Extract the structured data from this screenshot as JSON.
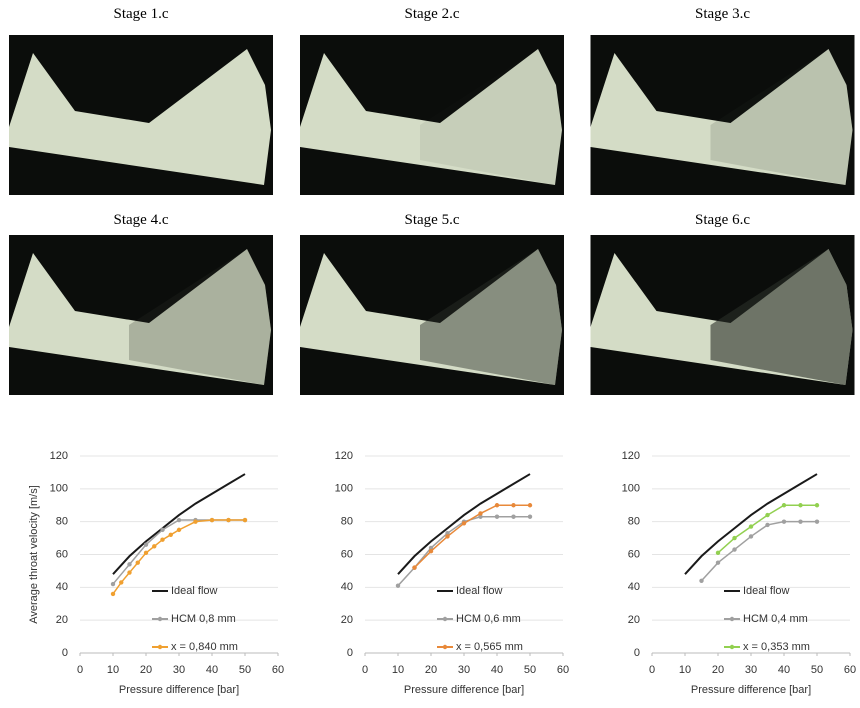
{
  "photos": [
    {
      "label": "Stage 1.c"
    },
    {
      "label": "Stage 2.c"
    },
    {
      "label": "Stage 3.c"
    },
    {
      "label": "Stage 4.c"
    },
    {
      "label": "Stage 5.c"
    },
    {
      "label": "Stage 6.c"
    }
  ],
  "chart_data": [
    {
      "type": "line",
      "ylabel": "Average throat velocity [m/s]",
      "xlabel": "Pressure difference [bar]",
      "xlim": [
        0,
        60
      ],
      "xticks": [
        0,
        10,
        20,
        30,
        40,
        50,
        60
      ],
      "ylim": [
        0,
        120
      ],
      "yticks": [
        0,
        20,
        40,
        60,
        80,
        100,
        120
      ],
      "grid": true,
      "legend": "lower right",
      "series": [
        {
          "name": "Ideal flow",
          "color": "#1a1a1a",
          "x": [
            10,
            15,
            20,
            25,
            30,
            35,
            40,
            45,
            50
          ],
          "values": [
            48,
            59,
            68,
            76,
            84,
            91,
            97,
            103,
            109
          ]
        },
        {
          "name": "HCM 0,8 mm",
          "color": "#a0a0a0",
          "x": [
            10,
            15,
            20,
            25,
            30,
            35,
            40,
            45,
            50
          ],
          "values": [
            42,
            54,
            66,
            75,
            81,
            81,
            81,
            81,
            81
          ]
        },
        {
          "name": "x = 0,840 mm",
          "color": "#f0a030",
          "x": [
            10,
            12.5,
            15,
            17.5,
            20,
            22.5,
            25,
            27.5,
            30,
            35,
            40,
            45,
            50
          ],
          "values": [
            36,
            43,
            49,
            55,
            61,
            65,
            69,
            72,
            75,
            80,
            81,
            81,
            81
          ]
        }
      ]
    },
    {
      "type": "line",
      "xlabel": "Pressure difference [bar]",
      "xlim": [
        0,
        60
      ],
      "xticks": [
        0,
        10,
        20,
        30,
        40,
        50,
        60
      ],
      "ylim": [
        0,
        120
      ],
      "yticks": [
        0,
        20,
        40,
        60,
        80,
        100,
        120
      ],
      "grid": true,
      "legend": "lower right",
      "series": [
        {
          "name": "Ideal flow",
          "color": "#1a1a1a",
          "x": [
            10,
            15,
            20,
            25,
            30,
            35,
            40,
            45,
            50
          ],
          "values": [
            48,
            59,
            68,
            76,
            84,
            91,
            97,
            103,
            109
          ]
        },
        {
          "name": "HCM 0,6 mm",
          "color": "#a0a0a0",
          "x": [
            10,
            15,
            20,
            25,
            30,
            35,
            40,
            45,
            50
          ],
          "values": [
            41,
            52,
            64,
            73,
            80,
            83,
            83,
            83,
            83
          ]
        },
        {
          "name": "x = 0,565 mm",
          "color": "#e8893a",
          "x": [
            15,
            20,
            25,
            30,
            35,
            40,
            45,
            50
          ],
          "values": [
            52,
            62,
            71,
            79,
            85,
            90,
            90,
            90
          ]
        }
      ]
    },
    {
      "type": "line",
      "xlabel": "Pressure difference [bar]",
      "xlim": [
        0,
        60
      ],
      "xticks": [
        0,
        10,
        20,
        30,
        40,
        50,
        60
      ],
      "ylim": [
        0,
        120
      ],
      "yticks": [
        0,
        20,
        40,
        60,
        80,
        100,
        120
      ],
      "grid": true,
      "legend": "lower right",
      "series": [
        {
          "name": "Ideal flow",
          "color": "#1a1a1a",
          "x": [
            10,
            15,
            20,
            25,
            30,
            35,
            40,
            45,
            50
          ],
          "values": [
            48,
            59,
            68,
            76,
            84,
            91,
            97,
            103,
            109
          ]
        },
        {
          "name": "HCM 0,4 mm",
          "color": "#a0a0a0",
          "x": [
            15,
            20,
            25,
            30,
            35,
            40,
            45,
            50
          ],
          "values": [
            44,
            55,
            63,
            71,
            78,
            80,
            80,
            80
          ]
        },
        {
          "name": "x = 0,353 mm",
          "color": "#92d050",
          "x": [
            20,
            25,
            30,
            35,
            40,
            45,
            50
          ],
          "values": [
            61,
            70,
            77,
            84,
            90,
            90,
            90
          ]
        }
      ]
    }
  ]
}
